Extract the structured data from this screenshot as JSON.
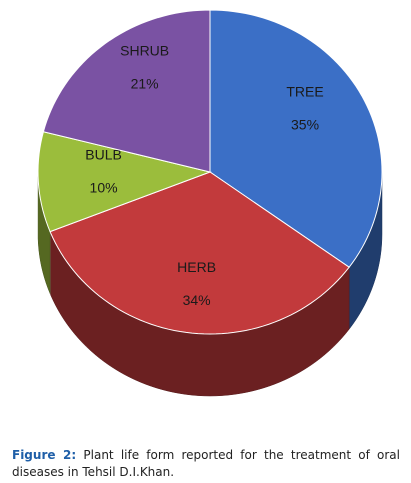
{
  "chart_data": {
    "type": "pie",
    "categories": [
      "TREE",
      "HERB",
      "BULB",
      "SHRUB"
    ],
    "values": [
      35,
      34,
      10,
      21
    ],
    "value_labels": [
      "35%",
      "34%",
      "10%",
      "21%"
    ],
    "colors": [
      "#3b6fc6",
      "#c23a3c",
      "#9bbd3c",
      "#7a52a3"
    ],
    "caption_label": "Figure 2:",
    "caption": "Plant life form reported for the treatment of oral diseases in Tehsil D.I.Khan."
  }
}
